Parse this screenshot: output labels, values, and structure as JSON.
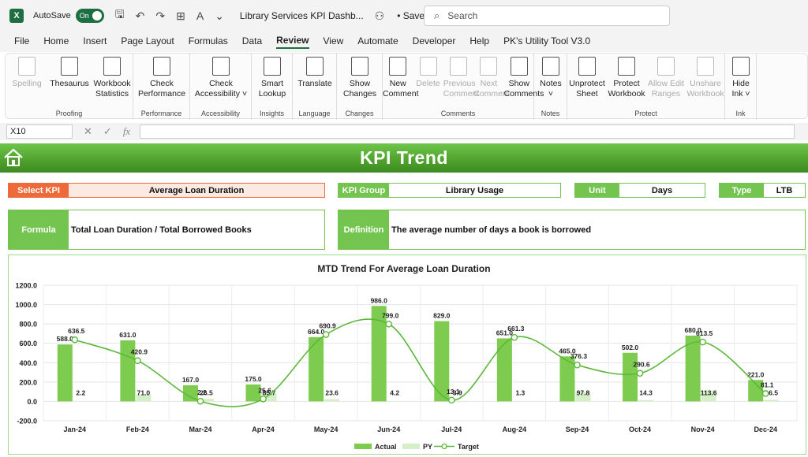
{
  "titlebar": {
    "autosave_label": "AutoSave",
    "toggle_state": "On",
    "doc_title": "Library Services KPI Dashb...",
    "saved_label": "• Saved",
    "search_placeholder": "Search"
  },
  "menu": [
    "File",
    "Home",
    "Insert",
    "Page Layout",
    "Formulas",
    "Data",
    "Review",
    "View",
    "Automate",
    "Developer",
    "Help",
    "PK's Utility Tool V3.0"
  ],
  "menu_active": "Review",
  "ribbon": {
    "groups": [
      {
        "label": "Proofing",
        "buttons": [
          {
            "l1": "Spelling",
            "l2": "",
            "dis": true
          },
          {
            "l1": "Thesaurus",
            "l2": "",
            "dis": false
          },
          {
            "l1": "Workbook",
            "l2": "Statistics",
            "dis": false
          }
        ]
      },
      {
        "label": "Performance",
        "buttons": [
          {
            "l1": "Check",
            "l2": "Performance",
            "dis": false
          }
        ]
      },
      {
        "label": "Accessibility",
        "buttons": [
          {
            "l1": "Check",
            "l2": "Accessibility ˅",
            "dis": false
          }
        ]
      },
      {
        "label": "Insights",
        "buttons": [
          {
            "l1": "Smart",
            "l2": "Lookup",
            "dis": false
          }
        ]
      },
      {
        "label": "Language",
        "buttons": [
          {
            "l1": "Translate",
            "l2": "",
            "dis": false
          }
        ]
      },
      {
        "label": "Changes",
        "buttons": [
          {
            "l1": "Show",
            "l2": "Changes",
            "dis": false
          }
        ]
      },
      {
        "label": "Comments",
        "buttons": [
          {
            "l1": "New",
            "l2": "Comment",
            "dis": false
          },
          {
            "l1": "Delete",
            "l2": "",
            "dis": true
          },
          {
            "l1": "Previous",
            "l2": "Comment",
            "dis": true
          },
          {
            "l1": "Next",
            "l2": "Comment",
            "dis": true
          },
          {
            "l1": "Show",
            "l2": "Comments",
            "dis": false
          }
        ]
      },
      {
        "label": "Notes",
        "buttons": [
          {
            "l1": "Notes",
            "l2": "˅",
            "dis": false
          }
        ]
      },
      {
        "label": "Protect",
        "buttons": [
          {
            "l1": "Unprotect",
            "l2": "Sheet",
            "dis": false
          },
          {
            "l1": "Protect",
            "l2": "Workbook",
            "dis": false
          },
          {
            "l1": "Allow Edit",
            "l2": "Ranges",
            "dis": true
          },
          {
            "l1": "Unshare",
            "l2": "Workbook",
            "dis": true
          }
        ]
      },
      {
        "label": "Ink",
        "buttons": [
          {
            "l1": "Hide",
            "l2": "Ink ˅",
            "dis": false
          }
        ]
      }
    ]
  },
  "formula_bar": {
    "name_box": "X10",
    "fx": "fx"
  },
  "dashboard": {
    "title": "KPI Trend",
    "select_kpi_label": "Select KPI",
    "select_kpi_value": "Average Loan Duration",
    "kpi_group_label": "KPI Group",
    "kpi_group_value": "Library Usage",
    "unit_label": "Unit",
    "unit_value": "Days",
    "type_label": "Type",
    "type_value": "LTB",
    "formula_label": "Formula",
    "formula_value": "Total Loan Duration / Total Borrowed Books",
    "definition_label": "Definition",
    "definition_value": "The average number of days a book is borrowed"
  },
  "colors": {
    "green": "#73c550",
    "orange": "#ef6a3a",
    "py": "#d5f0c8",
    "line": "#5cb83a"
  },
  "chart_data": {
    "type": "bar",
    "title": "MTD Trend For Average Loan Duration",
    "categories": [
      "Jan-24",
      "Feb-24",
      "Mar-24",
      "Apr-24",
      "May-24",
      "Jun-24",
      "Jul-24",
      "Aug-24",
      "Sep-24",
      "Oct-24",
      "Nov-24",
      "Dec-24"
    ],
    "series": [
      {
        "name": "Actual",
        "type": "bar",
        "values": [
          588.0,
          631.0,
          167.0,
          175.0,
          664.0,
          986.0,
          829.0,
          651.0,
          465.0,
          502.0,
          680.0,
          221.0
        ]
      },
      {
        "name": "PY",
        "type": "bar",
        "values": [
          2.2,
          71.0,
          26.5,
          85.7,
          23.6,
          4.2,
          3.9,
          1.3,
          97.8,
          14.3,
          113.6,
          16.5
        ]
      },
      {
        "name": "Target",
        "type": "line",
        "values": [
          636.5,
          420.9,
          2.2,
          25.6,
          690.9,
          799.0,
          13.1,
          661.3,
          376.3,
          290.6,
          613.5,
          81.1
        ]
      }
    ],
    "ylim": [
      -200,
      1200
    ],
    "yticks": [
      "1200.0",
      "1000.0",
      "800.0",
      "600.0",
      "400.0",
      "200.0",
      "0.0",
      "-200.0"
    ],
    "grid": true,
    "legend": "bottom"
  }
}
